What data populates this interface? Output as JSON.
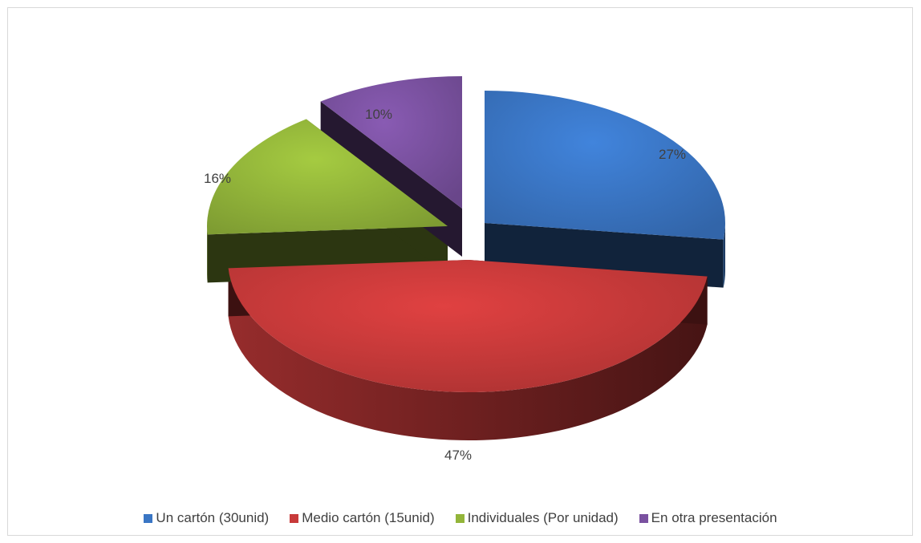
{
  "chart_data": {
    "type": "pie",
    "title": "",
    "categories": [
      "Un cartón (30unid)",
      "Medio cartón (15unid)",
      "Individuales (Por unidad)",
      "En otra presentación"
    ],
    "values": [
      27,
      47,
      16,
      10
    ],
    "labels": [
      "27%",
      "47%",
      "16%",
      "10%"
    ],
    "colors": [
      "#3a76c4",
      "#c83a3a",
      "#93b53a",
      "#7a51a0"
    ],
    "legend_position": "bottom",
    "style": "3d-exploded"
  }
}
